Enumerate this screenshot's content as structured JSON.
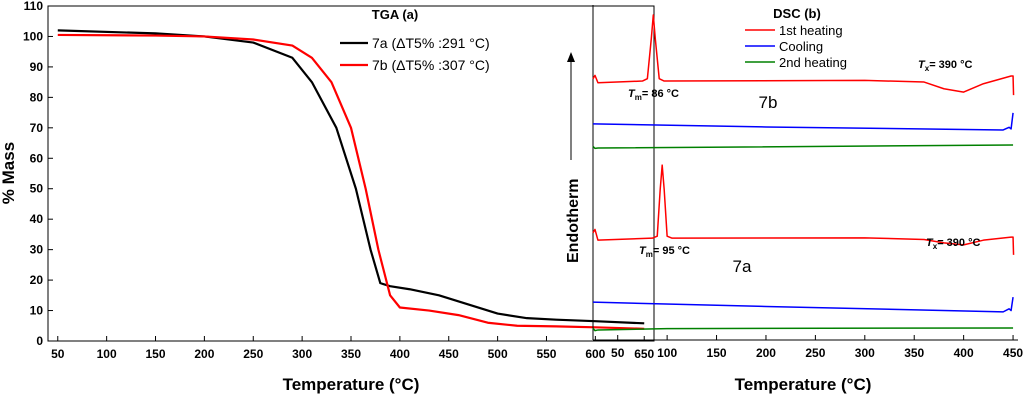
{
  "chart_data": [
    {
      "type": "line",
      "title": "TGA (a)",
      "xlabel": "Temperature (°C)",
      "ylabel": "% Mass",
      "xlim": [
        40,
        660
      ],
      "ylim": [
        0,
        110
      ],
      "xticks": [
        50,
        100,
        150,
        200,
        250,
        300,
        350,
        400,
        450,
        500,
        550,
        600,
        650
      ],
      "yticks": [
        0,
        10,
        20,
        30,
        40,
        50,
        60,
        70,
        80,
        90,
        100,
        110
      ],
      "grid": false,
      "legend_position": "top-center",
      "series": [
        {
          "name": "7a (ΔT5% :291 °C)",
          "color": "#000000",
          "x": [
            50,
            150,
            200,
            250,
            290,
            310,
            335,
            355,
            370,
            380,
            390,
            410,
            440,
            470,
            500,
            530,
            560,
            600,
            650
          ],
          "y": [
            102,
            101,
            100,
            98,
            93,
            85,
            70,
            50,
            30,
            19,
            18,
            17,
            15,
            12,
            9,
            7.5,
            7,
            6.5,
            5.8
          ]
        },
        {
          "name": "7b (ΔT5% :307 °C)",
          "color": "#ff0000",
          "x": [
            50,
            150,
            200,
            250,
            290,
            310,
            330,
            350,
            365,
            378,
            390,
            400,
            430,
            460,
            490,
            520,
            560,
            600,
            650
          ],
          "y": [
            100.5,
            100.3,
            100,
            99,
            97,
            93,
            85,
            70,
            50,
            30,
            15,
            11,
            10,
            8.5,
            6,
            5,
            4.8,
            4.5,
            4
          ]
        }
      ]
    },
    {
      "type": "line",
      "title": "DSC (b)",
      "xlabel": "Temperature (°C)",
      "ylabel": "Endotherm",
      "xlim": [
        25,
        455
      ],
      "ylim": [
        0,
        100
      ],
      "xticks": [
        50,
        100,
        150,
        200,
        250,
        300,
        350,
        400,
        450
      ],
      "grid": false,
      "legend_position": "top-center",
      "legend": [
        {
          "name": "1st heating",
          "color": "#ff0000"
        },
        {
          "name": "Cooling",
          "color": "#0000ff"
        },
        {
          "name": "2nd heating",
          "color": "#008000"
        }
      ],
      "annotations": [
        {
          "text": "7b",
          "sample": true
        },
        {
          "text": "7a",
          "sample": true
        },
        {
          "sym": "T",
          "sub": "m",
          "text": "= 86  °C"
        },
        {
          "sym": "T",
          "sub": "x",
          "text": "= 390  °C"
        },
        {
          "sym": "T",
          "sub": "m",
          "text": "= 95  °C"
        },
        {
          "sym": "T",
          "sub": "x",
          "text": "= 390  °C"
        }
      ],
      "series": [
        {
          "name": "7b 1st heating",
          "color": "#ff0000",
          "x": [
            25,
            27,
            30,
            75,
            80,
            84,
            86,
            88,
            92,
            97,
            300,
            360,
            380,
            400,
            420,
            448,
            450,
            450.5
          ],
          "y": [
            78,
            79,
            76.8,
            77.3,
            78,
            90,
            97,
            90,
            78,
            77.3,
            77.5,
            77,
            75,
            74,
            76.5,
            78.8,
            78.8,
            73.1
          ]
        },
        {
          "name": "7b cooling",
          "color": "#0000ff",
          "x": [
            25,
            200,
            440,
            446,
            448,
            450
          ],
          "y": [
            64.5,
            63.6,
            62.7,
            63.5,
            63,
            67.8
          ]
        },
        {
          "name": "7b 2nd heating",
          "color": "#008000",
          "x": [
            25,
            27,
            30,
            450
          ],
          "y": [
            57.8,
            57.2,
            57.3,
            58.2
          ]
        },
        {
          "name": "7a 1st heating",
          "color": "#ff0000",
          "x": [
            25,
            27,
            30,
            85,
            90,
            93,
            95,
            97,
            100,
            105,
            300,
            360,
            380,
            400,
            420,
            448,
            450,
            450.5
          ],
          "y": [
            32,
            33,
            29.8,
            30.4,
            31,
            45,
            52.2,
            45,
            31,
            30.4,
            30.5,
            30,
            29,
            28.4,
            29.8,
            30.7,
            30.7,
            25.4
          ]
        },
        {
          "name": "7a cooling",
          "color": "#0000ff",
          "x": [
            25,
            200,
            440,
            446,
            448,
            450
          ],
          "y": [
            11.3,
            10,
            8.4,
            9.3,
            8.8,
            12.8
          ]
        },
        {
          "name": "7a 2nd heating",
          "color": "#008000",
          "x": [
            25,
            27,
            30,
            100,
            450
          ],
          "y": [
            3.5,
            2.8,
            3,
            3.4,
            3.6
          ]
        }
      ]
    }
  ]
}
